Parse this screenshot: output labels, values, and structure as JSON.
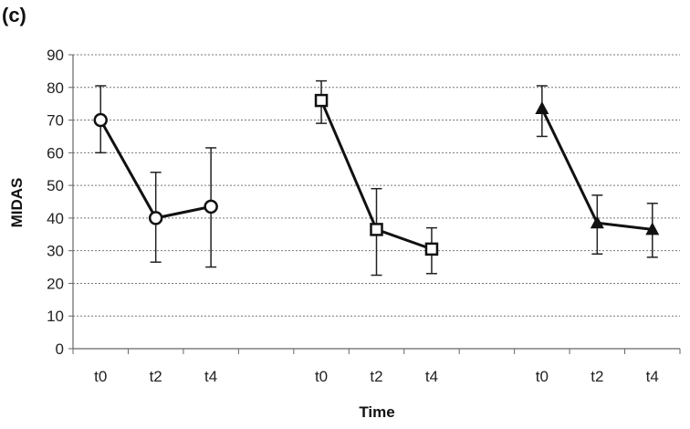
{
  "chart_data": {
    "type": "line",
    "panel_label": "(c)",
    "xlabel": "Time",
    "ylabel": "MIDAS",
    "ylim": [
      0,
      90
    ],
    "yticks": [
      0,
      10,
      20,
      30,
      40,
      50,
      60,
      70,
      80,
      90
    ],
    "grid": true,
    "categories": [
      "t0",
      "t2",
      "t4",
      "",
      "t0",
      "t2",
      "t4",
      "",
      "t0",
      "t2",
      "t4"
    ],
    "groups": [
      {
        "marker": "circle",
        "labels": [
          "t0",
          "t2",
          "t4"
        ],
        "values": [
          70,
          40,
          43.5
        ],
        "error_low": [
          60,
          26.5,
          25
        ],
        "error_high": [
          80.5,
          54,
          61.5
        ]
      },
      {
        "marker": "square",
        "labels": [
          "t0",
          "t2",
          "t4"
        ],
        "values": [
          76,
          36.5,
          30.5
        ],
        "error_low": [
          69,
          22.5,
          23
        ],
        "error_high": [
          82,
          49,
          37
        ]
      },
      {
        "marker": "triangle",
        "labels": [
          "t0",
          "t2",
          "t4"
        ],
        "values": [
          73.5,
          38.5,
          36.5
        ],
        "error_low": [
          65,
          29,
          28
        ],
        "error_high": [
          80.5,
          47,
          44.5
        ]
      }
    ]
  }
}
